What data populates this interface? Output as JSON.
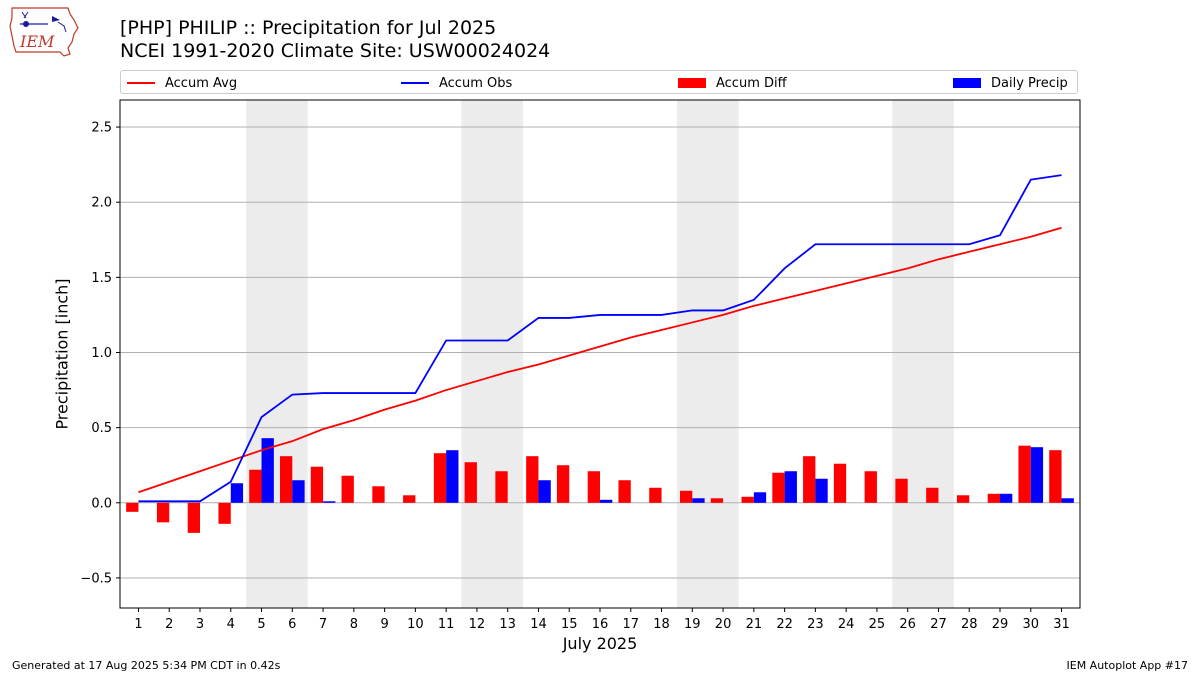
{
  "header": {
    "title_line1": "[PHP] PHILIP :: Precipitation for Jul 2025",
    "title_line2": "NCEI 1991-2020 Climate Site: USW00024024",
    "logo_text": "IEM"
  },
  "footer": {
    "generated": "Generated at 17 Aug 2025 5:34 PM CDT in 0.42s",
    "app": "IEM Autoplot App #17"
  },
  "colors": {
    "accum_avg": "#ff0000",
    "accum_obs": "#0000ff",
    "accum_diff": "#ff0000",
    "daily_precip": "#0000ff",
    "weekend_shade": "#ececec",
    "grid": "#b0b0b0"
  },
  "chart_data": {
    "type": "bar",
    "title": "[PHP] PHILIP :: Precipitation for Jul 2025",
    "subtitle": "NCEI 1991-2020 Climate Site: USW00024024",
    "xlabel": "July 2025",
    "ylabel": "Precipitation [inch]",
    "ylim": [
      -0.7,
      2.68
    ],
    "yticks": [
      -0.5,
      0.0,
      0.5,
      1.0,
      1.5,
      2.0,
      2.5
    ],
    "ytick_labels": [
      "−0.5",
      "0.0",
      "0.5",
      "1.0",
      "1.5",
      "2.0",
      "2.5"
    ],
    "grid": "horizontal",
    "legend_placement": "top",
    "x": [
      1,
      2,
      3,
      4,
      5,
      6,
      7,
      8,
      9,
      10,
      11,
      12,
      13,
      14,
      15,
      16,
      17,
      18,
      19,
      20,
      21,
      22,
      23,
      24,
      25,
      26,
      27,
      28,
      29,
      30,
      31
    ],
    "shaded_day_ranges": [
      [
        5,
        6
      ],
      [
        12,
        13
      ],
      [
        19,
        20
      ],
      [
        26,
        27
      ]
    ],
    "series": [
      {
        "name": "Accum Avg",
        "kind": "line",
        "values": [
          0.07,
          0.14,
          0.21,
          0.28,
          0.35,
          0.41,
          0.49,
          0.55,
          0.62,
          0.68,
          0.75,
          0.81,
          0.87,
          0.92,
          0.98,
          1.04,
          1.1,
          1.15,
          1.2,
          1.25,
          1.31,
          1.36,
          1.41,
          1.46,
          1.51,
          1.56,
          1.62,
          1.67,
          1.72,
          1.77,
          1.83
        ]
      },
      {
        "name": "Accum Obs",
        "kind": "line",
        "values": [
          0.01,
          0.01,
          0.01,
          0.14,
          0.57,
          0.72,
          0.73,
          0.73,
          0.73,
          0.73,
          1.08,
          1.08,
          1.08,
          1.23,
          1.23,
          1.25,
          1.25,
          1.25,
          1.28,
          1.28,
          1.35,
          1.56,
          1.72,
          1.72,
          1.72,
          1.72,
          1.72,
          1.72,
          1.78,
          2.15,
          2.18
        ]
      },
      {
        "name": "Accum Diff",
        "kind": "bar",
        "values": [
          -0.06,
          -0.13,
          -0.2,
          -0.14,
          0.22,
          0.31,
          0.24,
          0.18,
          0.11,
          0.05,
          0.33,
          0.27,
          0.21,
          0.31,
          0.25,
          0.21,
          0.15,
          0.1,
          0.08,
          0.03,
          0.04,
          0.2,
          0.31,
          0.26,
          0.21,
          0.16,
          0.1,
          0.05,
          0.06,
          0.38,
          0.35
        ]
      },
      {
        "name": "Daily Precip",
        "kind": "bar",
        "values": [
          0.0,
          0.0,
          0.0,
          0.13,
          0.43,
          0.15,
          0.01,
          0.0,
          0.0,
          0.0,
          0.35,
          0.0,
          0.0,
          0.15,
          0.0,
          0.02,
          0.0,
          0.0,
          0.03,
          0.0,
          0.07,
          0.21,
          0.16,
          0.0,
          0.0,
          0.0,
          0.0,
          0.0,
          0.06,
          0.37,
          0.03
        ]
      }
    ]
  }
}
